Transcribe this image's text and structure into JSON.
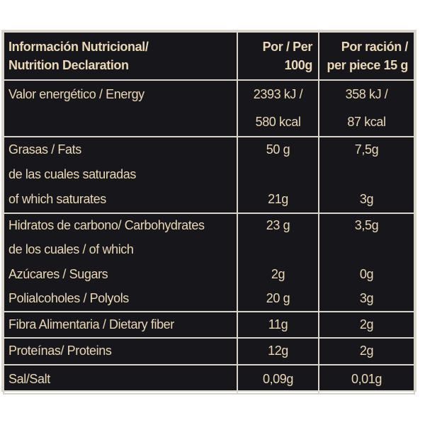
{
  "table": {
    "header": {
      "label": [
        "Información Nutricional/",
        "Nutrition Declaration"
      ],
      "per100": [
        "Por / Per",
        "100g"
      ],
      "per_piece": [
        "Por ración /",
        "per piece 15 g"
      ]
    },
    "rows": [
      {
        "items": [
          {
            "label": "Valor energético / Energy",
            "per100": "2393 kJ /",
            "per_piece": "358 kJ /"
          },
          {
            "per100": "580 kcal",
            "per_piece": "87 kcal"
          }
        ]
      },
      {
        "items": [
          {
            "label": "Grasas / Fats",
            "per100": "50 g",
            "per_piece": "7,5g"
          },
          {
            "label": "de las cuales saturadas"
          },
          {
            "label": "of which saturates",
            "per100": "21g",
            "per_piece": "3g"
          }
        ]
      },
      {
        "items": [
          {
            "label": "Hidratos de carbono/ Carbohydrates",
            "per100": "23 g",
            "per_piece": "3,5g"
          },
          {
            "label": "de los cuales / of which"
          },
          {
            "label": "Azúcares / Sugars",
            "per100": "2g",
            "per_piece": "0g"
          },
          {
            "label": "Polialcoholes / Polyols",
            "per100": "20 g",
            "per_piece": "3g"
          }
        ]
      },
      {
        "items": [
          {
            "label": "Fibra Alimentaria / Dietary fiber",
            "per100": "11g",
            "per_piece": "2g"
          }
        ]
      },
      {
        "items": [
          {
            "label": "Proteínas/ Proteins",
            "per100": "12g",
            "per_piece": "2g"
          }
        ]
      },
      {
        "items": [
          {
            "label": "Sal/Salt",
            "per100": "0,09g",
            "per_piece": "0,01g"
          }
        ]
      }
    ]
  }
}
